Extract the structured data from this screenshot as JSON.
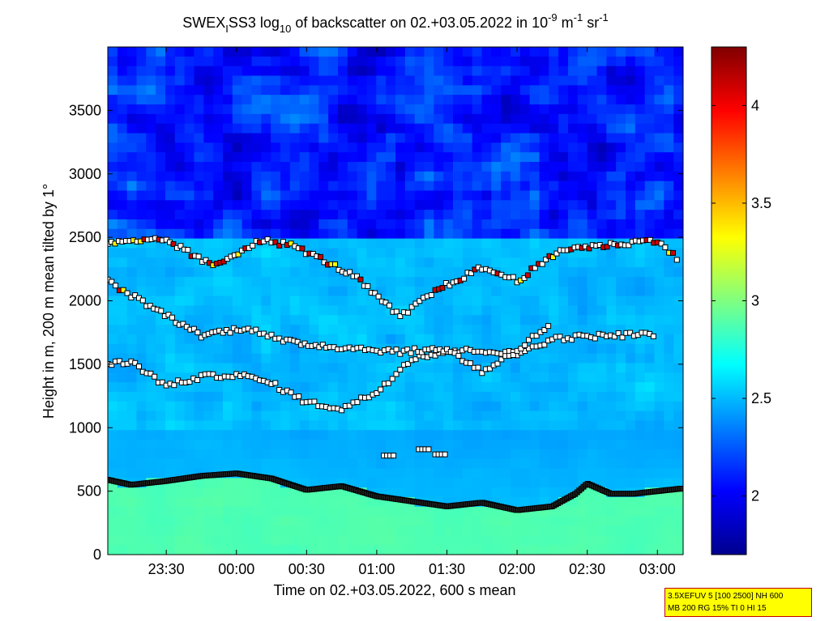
{
  "chart_data": {
    "type": "heatmap",
    "title": {
      "parts": [
        "SWEX",
        "I",
        "SS3 log",
        "10",
        " of backscatter on 02.+03.05.2022 in 10",
        "-9",
        " m",
        "-1",
        " sr",
        "-1"
      ]
    },
    "xlabel": "Time on 02.+03.05.2022, 600 s mean",
    "ylabel": "Height in m, 200 m mean tilted by 1°",
    "xlim": [
      "23:05",
      "03:11"
    ],
    "ylim": [
      0,
      4000
    ],
    "x_ticks": [
      "23:30",
      "00:00",
      "00:30",
      "01:00",
      "01:30",
      "02:00",
      "02:30",
      "03:00"
    ],
    "y_ticks": [
      0,
      500,
      1000,
      1500,
      2000,
      2500,
      3000,
      3500
    ],
    "colorbar": {
      "range": [
        1.7,
        4.3
      ],
      "ticks": [
        2,
        2.5,
        3,
        3.5,
        4
      ],
      "tick_labels": [
        "2",
        "2.5",
        "3",
        "3.5",
        "4"
      ],
      "colormap": "jet"
    },
    "boundary_layer_height": {
      "x": [
        "23:05",
        "23:15",
        "23:30",
        "23:45",
        "00:00",
        "00:15",
        "00:30",
        "00:45",
        "01:00",
        "01:15",
        "01:30",
        "01:45",
        "02:00",
        "02:15",
        "02:25",
        "02:30",
        "02:40",
        "02:50",
        "03:00",
        "03:10"
      ],
      "y": [
        590,
        550,
        580,
        620,
        640,
        600,
        510,
        540,
        460,
        420,
        380,
        410,
        350,
        380,
        480,
        560,
        480,
        480,
        500,
        520
      ]
    },
    "cloud_layers": [
      {
        "name": "",
        "x": [
          "23:05",
          "23:15",
          "23:30",
          "23:45",
          "00:00",
          "00:15",
          "00:30",
          "00:45",
          "01:00",
          "01:15",
          "01:30",
          "01:45",
          "02:00",
          "02:15",
          "02:30",
          "02:45",
          "03:00"
        ],
        "y": [
          1500,
          1520,
          1330,
          1400,
          1420,
          1350,
          1200,
          1150,
          1280,
          1550,
          1600,
          1610,
          1580,
          1700,
          1720,
          1730,
          1740
        ]
      },
      {
        "name": "",
        "x": [
          "23:05",
          "23:20",
          "23:45",
          "00:05",
          "00:20",
          "00:40",
          "00:55",
          "01:10",
          "01:30",
          "01:45",
          "02:00",
          "02:15"
        ],
        "y": [
          2150,
          1990,
          1730,
          1790,
          1680,
          1640,
          1620,
          1600,
          1620,
          1440,
          1610,
          1830
        ]
      },
      {
        "name": "",
        "x": [
          "23:05",
          "23:30",
          "23:50",
          "00:10",
          "00:25",
          "00:50",
          "01:10",
          "01:25",
          "01:45",
          "02:00",
          "02:20",
          "02:40",
          "03:00",
          "03:10"
        ],
        "y": [
          2450,
          2480,
          2270,
          2480,
          2430,
          2200,
          1870,
          2080,
          2260,
          2160,
          2410,
          2440,
          2480,
          2300
        ]
      }
    ],
    "low_cloud_patches": [
      {
        "x": [
          "01:03",
          "01:18",
          "01:25"
        ],
        "y": [
          780,
          830,
          790
        ]
      }
    ]
  },
  "info_box": {
    "line1": "3.5XEFUV 5 [100 2500] NH 600",
    "line2": "MB 200 RG 15% TI 0 HI 15"
  },
  "colors": {
    "axis": "#000000",
    "marker_edge": "#000000",
    "marker_fill_default": "#ffffff",
    "info_box_bg": "#ffff00",
    "info_box_border": "#c00000"
  }
}
